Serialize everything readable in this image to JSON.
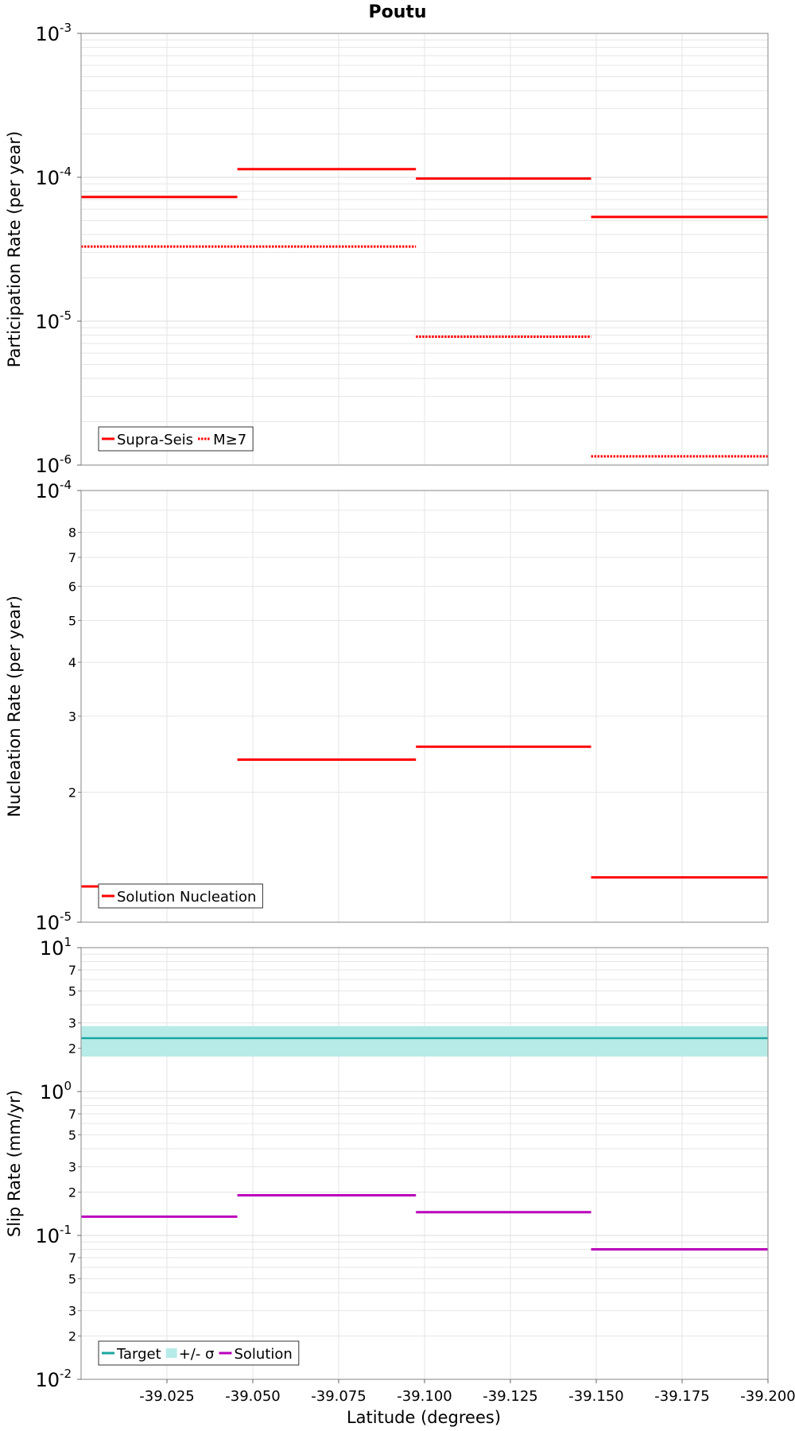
{
  "figure": {
    "title": "Poutu",
    "xlabel": "Latitude (degrees)",
    "x_tick_labels": [
      "-39.025",
      "-39.050",
      "-39.075",
      "-39.100",
      "-39.125",
      "-39.150",
      "-39.175",
      "-39.200"
    ]
  },
  "colors": {
    "supra_seis": "#ff0000",
    "target": "#1aa6a0",
    "sigma_band": "#b7ebe8",
    "solution_slip": "#bb00bb",
    "grid": "#e6e6e6",
    "axis": "#999999"
  },
  "chart_data": [
    {
      "type": "line",
      "name": "participation",
      "ylabel": "Participation Rate (per year)",
      "scale": "log",
      "xlim": [
        -39.0,
        -39.2
      ],
      "ylim": [
        1e-06,
        0.001
      ],
      "grid": true,
      "legend_position": "bottom-left",
      "y_major_ticks": [
        {
          "base": "10",
          "exp": "-6"
        },
        {
          "base": "10",
          "exp": "-5"
        },
        {
          "base": "10",
          "exp": "-4"
        },
        {
          "base": "10",
          "exp": "-3"
        }
      ],
      "series": [
        {
          "name": "Supra-Seis",
          "style": "solid",
          "color": "#ff0000",
          "segments": [
            {
              "x0": -39.0,
              "x1": -39.0455,
              "y": 7.3e-05
            },
            {
              "x0": -39.0455,
              "x1": -39.0975,
              "y": 0.000114
            },
            {
              "x0": -39.0975,
              "x1": -39.1485,
              "y": 9.8e-05
            },
            {
              "x0": -39.1485,
              "x1": -39.2,
              "y": 5.3e-05
            }
          ]
        },
        {
          "name": "M≥7",
          "style": "dotted",
          "color": "#ff0000",
          "segments": [
            {
              "x0": -39.0,
              "x1": -39.0975,
              "y": 3.3e-05
            },
            {
              "x0": -39.0975,
              "x1": -39.1485,
              "y": 7.8e-06
            },
            {
              "x0": -39.1485,
              "x1": -39.2,
              "y": 1.15e-06
            }
          ]
        }
      ]
    },
    {
      "type": "line",
      "name": "nucleation",
      "ylabel": "Nucleation Rate (per year)",
      "scale": "log",
      "xlim": [
        -39.0,
        -39.2
      ],
      "ylim": [
        1e-05,
        0.0001
      ],
      "grid": true,
      "legend_position": "bottom-left",
      "y_major_ticks": [
        {
          "base": "10",
          "exp": "-5"
        },
        {
          "base": "10",
          "exp": "-4"
        }
      ],
      "y_minor_ticks": [
        2,
        3,
        4,
        5,
        6,
        7,
        8
      ],
      "series": [
        {
          "name": "Solution Nucleation",
          "style": "solid",
          "color": "#ff0000",
          "segments": [
            {
              "x0": -39.0,
              "x1": -39.0455,
              "y": 1.21e-05
            },
            {
              "x0": -39.0455,
              "x1": -39.0975,
              "y": 2.38e-05
            },
            {
              "x0": -39.0975,
              "x1": -39.1485,
              "y": 2.55e-05
            },
            {
              "x0": -39.1485,
              "x1": -39.2,
              "y": 1.27e-05
            }
          ]
        }
      ]
    },
    {
      "type": "line",
      "name": "slip",
      "ylabel": "Slip Rate (mm/yr)",
      "scale": "log",
      "xlim": [
        -39.0,
        -39.2
      ],
      "ylim": [
        0.01,
        10
      ],
      "grid": true,
      "legend_position": "bottom-left",
      "y_major_ticks": [
        {
          "base": "10",
          "exp": "-2"
        },
        {
          "base": "10",
          "exp": "-1"
        },
        {
          "base": "10",
          "exp": "0"
        },
        {
          "base": "10",
          "exp": "1"
        }
      ],
      "y_minor_ticks": [
        2,
        3,
        5,
        7
      ],
      "target": {
        "name": "Target",
        "y": 2.35,
        "color": "#1aa6a0"
      },
      "sigma": {
        "name": "+/- σ",
        "y_low": 1.75,
        "y_high": 2.85,
        "color": "#b7ebe8"
      },
      "series": [
        {
          "name": "Solution",
          "style": "solid",
          "color": "#bb00bb",
          "segments": [
            {
              "x0": -39.0,
              "x1": -39.0455,
              "y": 0.135
            },
            {
              "x0": -39.0455,
              "x1": -39.0975,
              "y": 0.19
            },
            {
              "x0": -39.0975,
              "x1": -39.1485,
              "y": 0.145
            },
            {
              "x0": -39.1485,
              "x1": -39.2,
              "y": 0.08
            }
          ]
        }
      ]
    }
  ]
}
